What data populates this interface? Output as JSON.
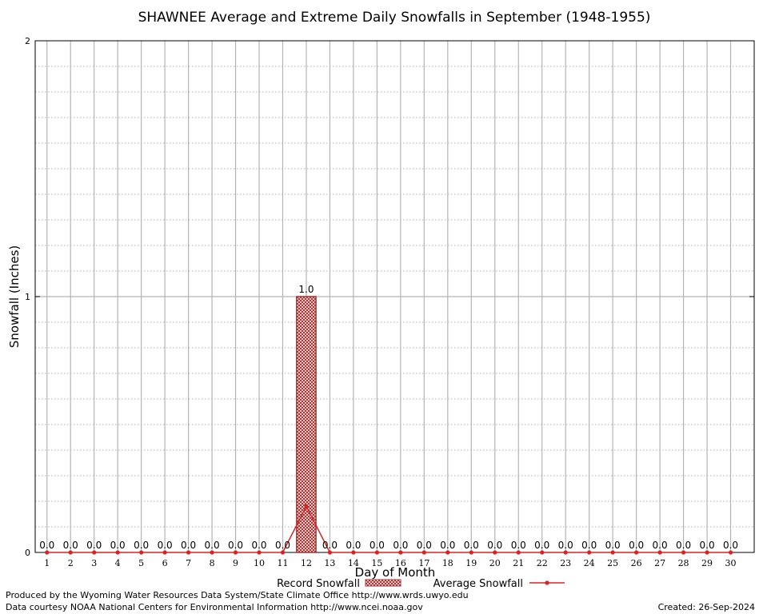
{
  "chart_data": {
    "type": "bar",
    "title": "SHAWNEE Average and Extreme Daily Snowfalls in September (1948-1955)",
    "xlabel": "Day of Month",
    "ylabel": "Snowfall (Inches)",
    "ylim": [
      0,
      2
    ],
    "yticks": [
      "0",
      "1",
      "2"
    ],
    "categories": [
      "1",
      "2",
      "3",
      "4",
      "5",
      "6",
      "7",
      "8",
      "9",
      "10",
      "11",
      "12",
      "13",
      "14",
      "15",
      "16",
      "17",
      "18",
      "19",
      "20",
      "21",
      "22",
      "23",
      "24",
      "25",
      "26",
      "27",
      "28",
      "29",
      "30"
    ],
    "series": [
      {
        "name": "Record Snowfall",
        "kind": "bar",
        "color": "#a0302f",
        "values": [
          0,
          0,
          0,
          0,
          0,
          0,
          0,
          0,
          0,
          0,
          0,
          1.0,
          0,
          0,
          0,
          0,
          0,
          0,
          0,
          0,
          0,
          0,
          0,
          0,
          0,
          0,
          0,
          0,
          0,
          0
        ],
        "labels": [
          "0.0",
          "0.0",
          "0.0",
          "0.0",
          "0.0",
          "0.0",
          "0.0",
          "0.0",
          "0.0",
          "0.0",
          "0.0",
          "1.0",
          "0.0",
          "0.0",
          "0.0",
          "0.0",
          "0.0",
          "0.0",
          "0.0",
          "0.0",
          "0.0",
          "0.0",
          "0.0",
          "0.0",
          "0.0",
          "0.0",
          "0.0",
          "0.0",
          "0.0",
          "0.0"
        ]
      },
      {
        "name": "Average Snowfall",
        "kind": "line",
        "color": "#e02020",
        "values": [
          0,
          0,
          0,
          0,
          0,
          0,
          0,
          0,
          0,
          0,
          0,
          0.18,
          0,
          0,
          0,
          0,
          0,
          0,
          0,
          0,
          0,
          0,
          0,
          0,
          0,
          0,
          0,
          0,
          0,
          0
        ]
      }
    ],
    "grid": true,
    "legend_placement": "bottom"
  },
  "footer": {
    "produced_by": "Produced by the Wyoming Water Resources Data System/State Climate Office http://www.wrds.uwyo.edu",
    "courtesy": "Data courtesy NOAA National Centers for Environmental Information http://www.ncei.noaa.gov",
    "created": "Created: 26-Sep-2024"
  }
}
